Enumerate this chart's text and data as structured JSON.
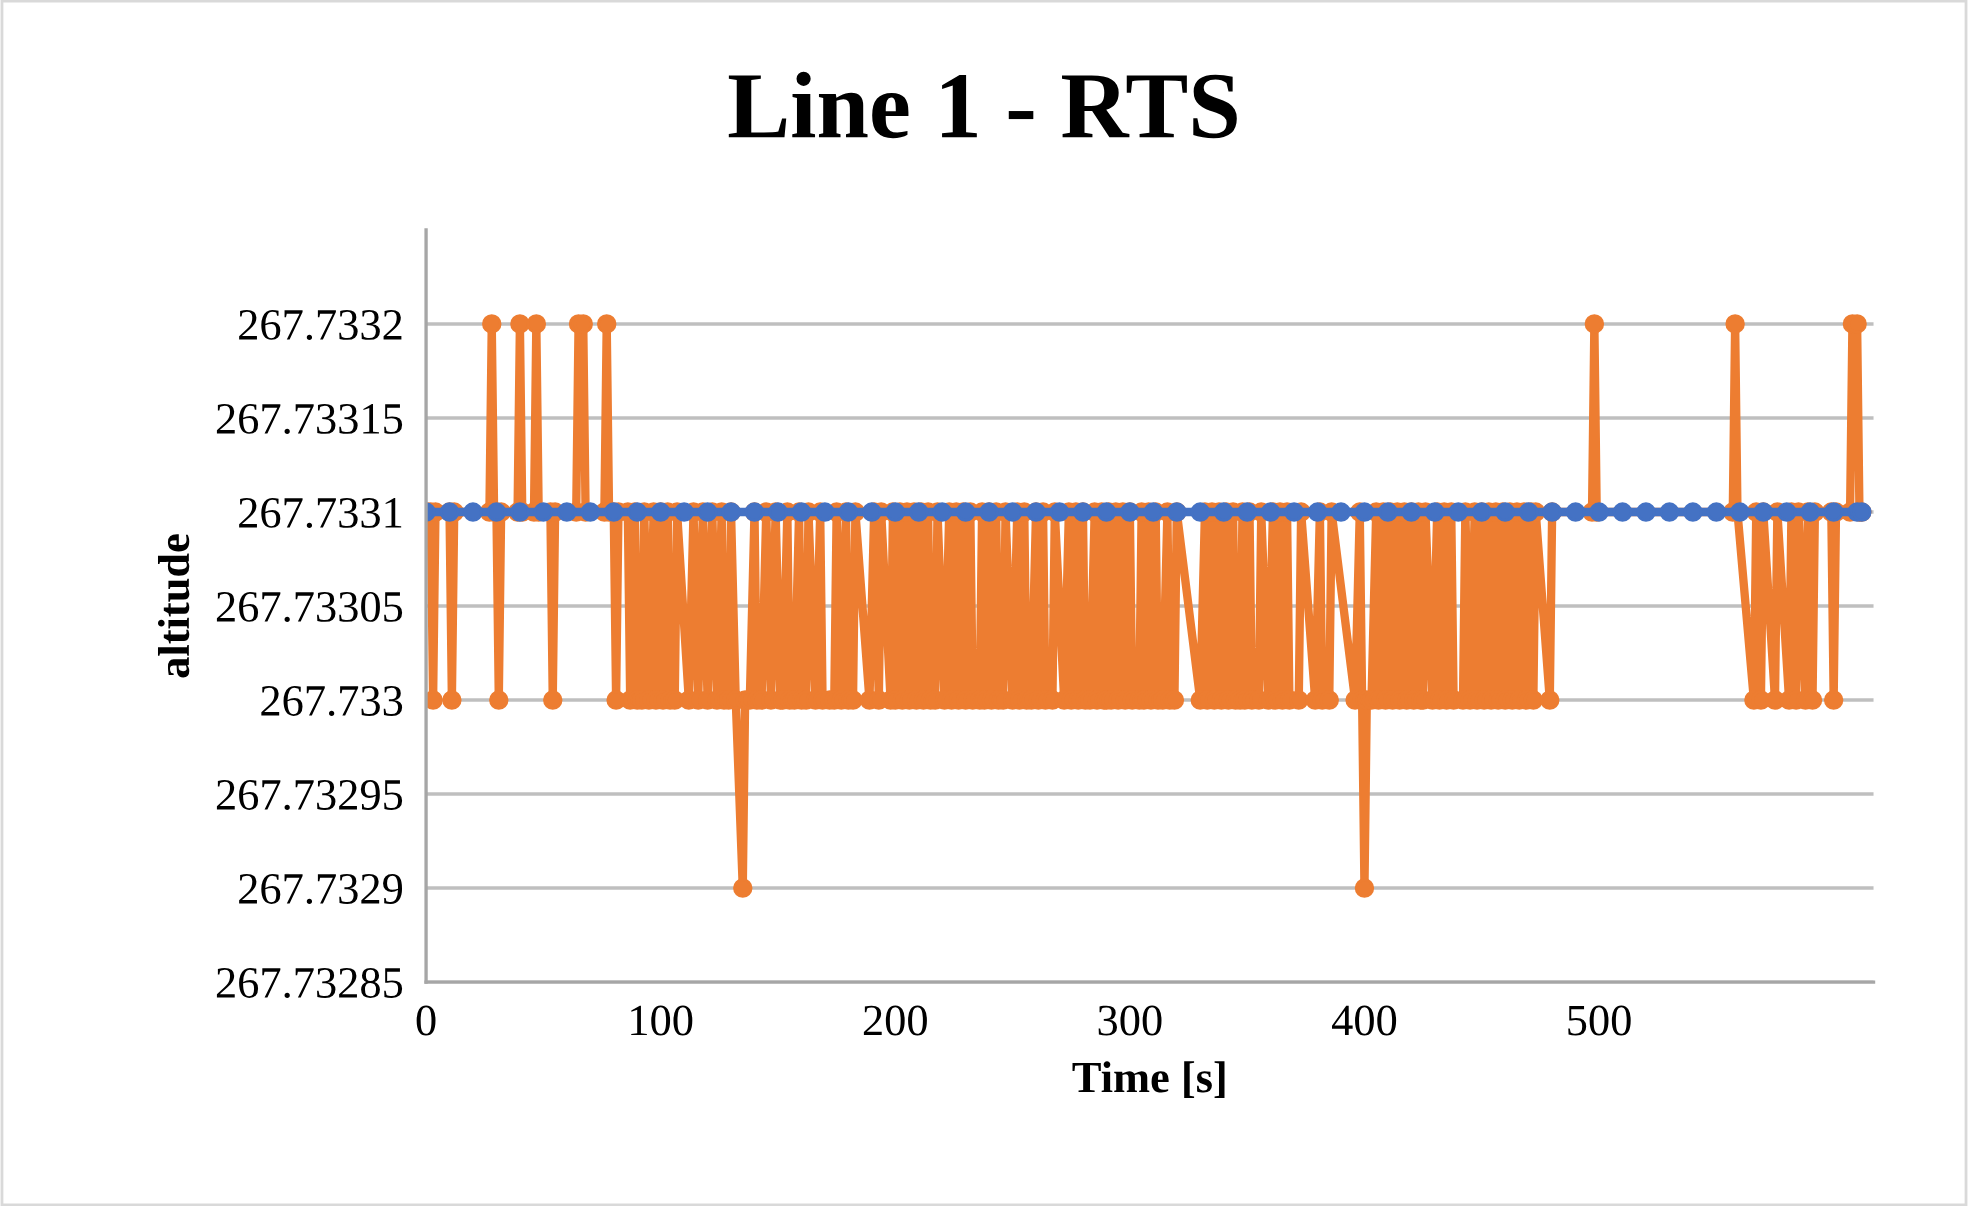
{
  "chart_data": {
    "type": "line",
    "title": "Line 1 - RTS",
    "xlabel": "Time [s]",
    "ylabel": "altitude",
    "xlim": [
      0,
      617
    ],
    "xticks": [
      0,
      100,
      200,
      300,
      400,
      500
    ],
    "ylim": [
      267.73285,
      267.73325
    ],
    "yticks": [
      267.73285,
      267.7329,
      267.73295,
      267.733,
      267.73305,
      267.7331,
      267.73315,
      267.7332
    ],
    "grid": "y",
    "marker": "circle",
    "line_style": "solid",
    "series": [
      {
        "color": "#ed7d31",
        "x": [
          0,
          2,
          3,
          4,
          10,
          11,
          12,
          27,
          28,
          29,
          30,
          31,
          32,
          39,
          40,
          41,
          46,
          47,
          48,
          53,
          54,
          55,
          64,
          65,
          67,
          68,
          76,
          77,
          78,
          80,
          81,
          82,
          86,
          87,
          89,
          90,
          92,
          93,
          95,
          97,
          98,
          100,
          101,
          103,
          104,
          106,
          107,
          112,
          114,
          116,
          118,
          120,
          122,
          124,
          126,
          127,
          129,
          130,
          132,
          135,
          136,
          138,
          140,
          141,
          143,
          145,
          147,
          149,
          151,
          152,
          154,
          155,
          157,
          159,
          160,
          162,
          163,
          166,
          168,
          169,
          172,
          174,
          175,
          177,
          179,
          180,
          182,
          183,
          189,
          191,
          193,
          194,
          198,
          199,
          200,
          202,
          203,
          205,
          206,
          208,
          209,
          211,
          212,
          214,
          215,
          217,
          218,
          221,
          223,
          224,
          226,
          227,
          229,
          230,
          232,
          233,
          236,
          237,
          238,
          240,
          241,
          243,
          244,
          246,
          247,
          250,
          252,
          253,
          255,
          256,
          258,
          260,
          261,
          263,
          264,
          267,
          268,
          272,
          274,
          275,
          277,
          278,
          280,
          281,
          283,
          285,
          286,
          288,
          289,
          290,
          291,
          292,
          294,
          295,
          297,
          298,
          300,
          301,
          304,
          305,
          306,
          308,
          309,
          311,
          312,
          314,
          316,
          317,
          319,
          320,
          330,
          332,
          333,
          335,
          336,
          338,
          339,
          341,
          342,
          344,
          345,
          347,
          348,
          349,
          351,
          352,
          355,
          356,
          359,
          361,
          362,
          364,
          365,
          367,
          368,
          372,
          373,
          379,
          381,
          382,
          385,
          386,
          396,
          398,
          399,
          400,
          401,
          403,
          405,
          406,
          408,
          409,
          411,
          412,
          414,
          415,
          417,
          418,
          420,
          421,
          423,
          424,
          425,
          426,
          429,
          431,
          432,
          434,
          435,
          437,
          438,
          442,
          443,
          445,
          447,
          448,
          450,
          451,
          453,
          454,
          456,
          457,
          459,
          460,
          462,
          463,
          465,
          466,
          468,
          469,
          471,
          472,
          473,
          479,
          480,
          497,
          498,
          499,
          557,
          558,
          559,
          566,
          567,
          569,
          570,
          575,
          576,
          581,
          582,
          584,
          585,
          588,
          589,
          591,
          592,
          599,
          600,
          601,
          607,
          608,
          610,
          611,
          612
        ],
        "values": [
          267.7331,
          267.7331,
          267.733,
          267.7331,
          267.7331,
          267.733,
          267.7331,
          267.7331,
          267.7332,
          267.7331,
          267.7331,
          267.733,
          267.7331,
          267.7331,
          267.7332,
          267.7331,
          267.7331,
          267.7332,
          267.7331,
          267.7331,
          267.733,
          267.7331,
          267.7331,
          267.7332,
          267.7332,
          267.7331,
          267.7331,
          267.7332,
          267.7331,
          267.7331,
          267.733,
          267.7331,
          267.7331,
          267.733,
          267.7331,
          267.733,
          267.733,
          267.7331,
          267.733,
          267.7331,
          267.733,
          267.7331,
          267.733,
          267.7331,
          267.733,
          267.733,
          267.7331,
          267.733,
          267.7331,
          267.733,
          267.7331,
          267.733,
          267.7331,
          267.733,
          267.7331,
          267.733,
          267.733,
          267.7331,
          267.733,
          267.7329,
          267.733,
          267.733,
          267.7331,
          267.733,
          267.733,
          267.7331,
          267.733,
          267.7331,
          267.733,
          267.733,
          267.7331,
          267.733,
          267.733,
          267.7331,
          267.733,
          267.733,
          267.7331,
          267.733,
          267.7331,
          267.733,
          267.733,
          267.733,
          267.7331,
          267.733,
          267.7331,
          267.733,
          267.733,
          267.7331,
          267.733,
          267.7331,
          267.733,
          267.7331,
          267.733,
          267.7331,
          267.733,
          267.7331,
          267.733,
          267.7331,
          267.733,
          267.7331,
          267.733,
          267.7331,
          267.733,
          267.7331,
          267.733,
          267.733,
          267.7331,
          267.733,
          267.7331,
          267.733,
          267.7331,
          267.733,
          267.7331,
          267.733,
          267.7331,
          267.733,
          267.733,
          267.7331,
          267.733,
          267.7331,
          267.733,
          267.7331,
          267.733,
          267.733,
          267.7331,
          267.733,
          267.7331,
          267.733,
          267.7331,
          267.733,
          267.733,
          267.7331,
          267.733,
          267.7331,
          267.733,
          267.733,
          267.7331,
          267.733,
          267.7331,
          267.733,
          267.7331,
          267.733,
          267.7331,
          267.733,
          267.733,
          267.7331,
          267.733,
          267.7331,
          267.733,
          267.733,
          267.7331,
          267.733,
          267.7331,
          267.733,
          267.7331,
          267.733,
          267.7331,
          267.733,
          267.733,
          267.7331,
          267.733,
          267.7331,
          267.733,
          267.7331,
          267.733,
          267.733,
          267.7331,
          267.733,
          267.733,
          267.7331,
          267.733,
          267.7331,
          267.733,
          267.7331,
          267.733,
          267.7331,
          267.733,
          267.7331,
          267.733,
          267.7331,
          267.733,
          267.733,
          267.7331,
          267.733,
          267.7331,
          267.733,
          267.733,
          267.7331,
          267.733,
          267.7331,
          267.733,
          267.7331,
          267.733,
          267.7331,
          267.733,
          267.733,
          267.7331,
          267.733,
          267.7331,
          267.733,
          267.733,
          267.7331,
          267.733,
          267.7331,
          267.733,
          267.7329,
          267.733,
          267.733,
          267.7331,
          267.733,
          267.7331,
          267.733,
          267.7331,
          267.733,
          267.7331,
          267.733,
          267.7331,
          267.733,
          267.7331,
          267.733,
          267.7331,
          267.733,
          267.733,
          267.7331,
          267.733,
          267.7331,
          267.733,
          267.7331,
          267.733,
          267.7331,
          267.733,
          267.733,
          267.7331,
          267.733,
          267.7331,
          267.733,
          267.7331,
          267.733,
          267.7331,
          267.733,
          267.7331,
          267.733,
          267.7331,
          267.733,
          267.7331,
          267.733,
          267.7331,
          267.733,
          267.7331,
          267.733,
          267.7331,
          267.733,
          267.7331,
          267.733,
          267.7331,
          267.7331,
          267.7332,
          267.7331,
          267.7331,
          267.7332,
          267.7331,
          267.733,
          267.7331,
          267.733,
          267.7331,
          267.733,
          267.7331,
          267.733,
          267.7331,
          267.733,
          267.7331,
          267.733,
          267.7331,
          267.733,
          267.7331,
          267.7331,
          267.733,
          267.7331,
          267.7331,
          267.7332,
          267.7332,
          267.7331,
          267.7331
        ]
      },
      {
        "color": "#4472c4",
        "x": [
          0,
          10,
          20,
          30,
          40,
          50,
          60,
          70,
          80,
          90,
          100,
          110,
          120,
          130,
          140,
          150,
          160,
          170,
          180,
          190,
          200,
          210,
          220,
          230,
          240,
          250,
          260,
          270,
          280,
          290,
          300,
          310,
          320,
          330,
          340,
          350,
          360,
          370,
          380,
          390,
          400,
          410,
          420,
          430,
          440,
          450,
          460,
          470,
          480,
          490,
          500,
          510,
          520,
          530,
          540,
          550,
          560,
          570,
          580,
          590,
          600,
          610,
          612
        ],
        "values": [
          267.7331,
          267.7331,
          267.7331,
          267.7331,
          267.7331,
          267.7331,
          267.7331,
          267.7331,
          267.7331,
          267.7331,
          267.7331,
          267.7331,
          267.7331,
          267.7331,
          267.7331,
          267.7331,
          267.7331,
          267.7331,
          267.7331,
          267.7331,
          267.7331,
          267.7331,
          267.7331,
          267.7331,
          267.7331,
          267.7331,
          267.7331,
          267.7331,
          267.7331,
          267.7331,
          267.7331,
          267.7331,
          267.7331,
          267.7331,
          267.7331,
          267.7331,
          267.7331,
          267.7331,
          267.7331,
          267.7331,
          267.7331,
          267.7331,
          267.7331,
          267.7331,
          267.7331,
          267.7331,
          267.7331,
          267.7331,
          267.7331,
          267.7331,
          267.7331,
          267.7331,
          267.7331,
          267.7331,
          267.7331,
          267.7331,
          267.7331,
          267.7331,
          267.7331,
          267.7331,
          267.7331,
          267.7331,
          267.7331
        ]
      }
    ]
  }
}
